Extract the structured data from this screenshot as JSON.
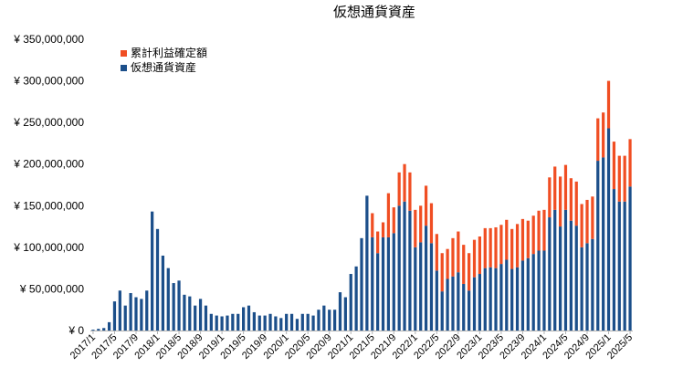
{
  "chart_data": {
    "type": "bar",
    "stacked": true,
    "title": "仮想通貨資産",
    "xlabel": "",
    "ylabel": "",
    "ylim": [
      0,
      350000000
    ],
    "y_ticks": [
      {
        "value": 0,
        "label": "¥ 0"
      },
      {
        "value": 50000000,
        "label": "¥ 50,000,000"
      },
      {
        "value": 100000000,
        "label": "¥ 100,000,000"
      },
      {
        "value": 150000000,
        "label": "¥ 150,000,000"
      },
      {
        "value": 200000000,
        "label": "¥ 200,000,000"
      },
      {
        "value": 250000000,
        "label": "¥ 250,000,000"
      },
      {
        "value": 300000000,
        "label": "¥ 300,000,000"
      },
      {
        "value": 350000000,
        "label": "¥ 350,000,000"
      }
    ],
    "x_tick_labels": [
      "2017/1",
      "2017/5",
      "2017/9",
      "2018/1",
      "2018/5",
      "2018/9",
      "2019/1",
      "2019/5",
      "2019/9",
      "2020/1",
      "2020/5",
      "2020/9",
      "2021/1",
      "2021/5",
      "2021/9",
      "2022/1",
      "2022/5",
      "2022/9",
      "2023/1",
      "2023/5",
      "2023/9",
      "2024/1",
      "2024/5",
      "2024/9",
      "2025/1",
      "2025/5"
    ],
    "grid": false,
    "legend_position": "top-left",
    "categories": [
      "2017/1",
      "2017/2",
      "2017/3",
      "2017/4",
      "2017/5",
      "2017/6",
      "2017/7",
      "2017/8",
      "2017/9",
      "2017/10",
      "2017/11",
      "2017/12",
      "2018/1",
      "2018/2",
      "2018/3",
      "2018/4",
      "2018/5",
      "2018/6",
      "2018/7",
      "2018/8",
      "2018/9",
      "2018/10",
      "2018/11",
      "2018/12",
      "2019/1",
      "2019/2",
      "2019/3",
      "2019/4",
      "2019/5",
      "2019/6",
      "2019/7",
      "2019/8",
      "2019/9",
      "2019/10",
      "2019/11",
      "2019/12",
      "2020/1",
      "2020/2",
      "2020/3",
      "2020/4",
      "2020/5",
      "2020/6",
      "2020/7",
      "2020/8",
      "2020/9",
      "2020/10",
      "2020/11",
      "2020/12",
      "2021/1",
      "2021/2",
      "2021/3",
      "2021/4",
      "2021/5",
      "2021/6",
      "2021/7",
      "2021/8",
      "2021/9",
      "2021/10",
      "2021/11",
      "2021/12",
      "2022/1",
      "2022/2",
      "2022/3",
      "2022/4",
      "2022/5",
      "2022/6",
      "2022/7",
      "2022/8",
      "2022/9",
      "2022/10",
      "2022/11",
      "2022/12",
      "2023/1",
      "2023/2",
      "2023/3",
      "2023/4",
      "2023/5",
      "2023/6",
      "2023/7",
      "2023/8",
      "2023/9",
      "2023/10",
      "2023/11",
      "2023/12",
      "2024/1",
      "2024/2",
      "2024/3",
      "2024/4",
      "2024/5",
      "2024/6",
      "2024/7",
      "2024/8",
      "2024/9",
      "2024/10",
      "2024/11",
      "2024/12",
      "2025/1",
      "2025/2",
      "2025/3",
      "2025/4",
      "2025/5"
    ],
    "series": [
      {
        "name": "仮想通貨資産",
        "color": "#1c4f8a",
        "values": [
          1000000,
          2000000,
          3000000,
          10000000,
          35000000,
          48000000,
          30000000,
          45000000,
          40000000,
          38000000,
          48000000,
          143000000,
          122000000,
          90000000,
          75000000,
          57000000,
          60000000,
          43000000,
          41000000,
          30000000,
          38000000,
          30000000,
          20000000,
          18000000,
          17000000,
          18000000,
          20000000,
          20000000,
          28000000,
          30000000,
          22000000,
          18000000,
          18000000,
          20000000,
          17000000,
          15000000,
          20000000,
          20000000,
          14000000,
          20000000,
          20000000,
          18000000,
          25000000,
          30000000,
          25000000,
          25000000,
          46000000,
          40000000,
          68000000,
          77000000,
          111000000,
          162000000,
          112000000,
          93000000,
          112000000,
          112000000,
          117000000,
          150000000,
          155000000,
          144000000,
          100000000,
          106000000,
          126000000,
          105000000,
          72000000,
          47000000,
          62000000,
          65000000,
          70000000,
          56000000,
          48000000,
          64000000,
          68000000,
          75000000,
          76000000,
          75000000,
          80000000,
          85000000,
          74000000,
          76000000,
          84000000,
          87000000,
          92000000,
          96000000,
          96000000,
          136000000,
          145000000,
          125000000,
          145000000,
          132000000,
          126000000,
          100000000,
          105000000,
          110000000,
          204000000,
          208000000,
          243000000,
          170000000,
          155000000,
          155000000,
          173000000
        ]
      },
      {
        "name": "累計利益確定額",
        "color": "#f04e23",
        "values": [
          0,
          0,
          0,
          0,
          0,
          0,
          0,
          0,
          0,
          0,
          0,
          0,
          0,
          0,
          0,
          0,
          0,
          0,
          0,
          0,
          0,
          0,
          0,
          0,
          0,
          0,
          0,
          0,
          0,
          0,
          0,
          0,
          0,
          0,
          0,
          0,
          0,
          0,
          0,
          0,
          0,
          0,
          0,
          0,
          0,
          0,
          0,
          0,
          0,
          0,
          0,
          0,
          29000000,
          26000000,
          18000000,
          53000000,
          31000000,
          40000000,
          45000000,
          46000000,
          45000000,
          44000000,
          48000000,
          48000000,
          44000000,
          46000000,
          36000000,
          46000000,
          49000000,
          47000000,
          45000000,
          45000000,
          45000000,
          48000000,
          47000000,
          49000000,
          47000000,
          48000000,
          48000000,
          52000000,
          50000000,
          45000000,
          46000000,
          48000000,
          49000000,
          48000000,
          52000000,
          60000000,
          54000000,
          51000000,
          53000000,
          52000000,
          52000000,
          51000000,
          51000000,
          54000000,
          57000000,
          57000000,
          55000000,
          55000000,
          57000000
        ]
      }
    ]
  }
}
